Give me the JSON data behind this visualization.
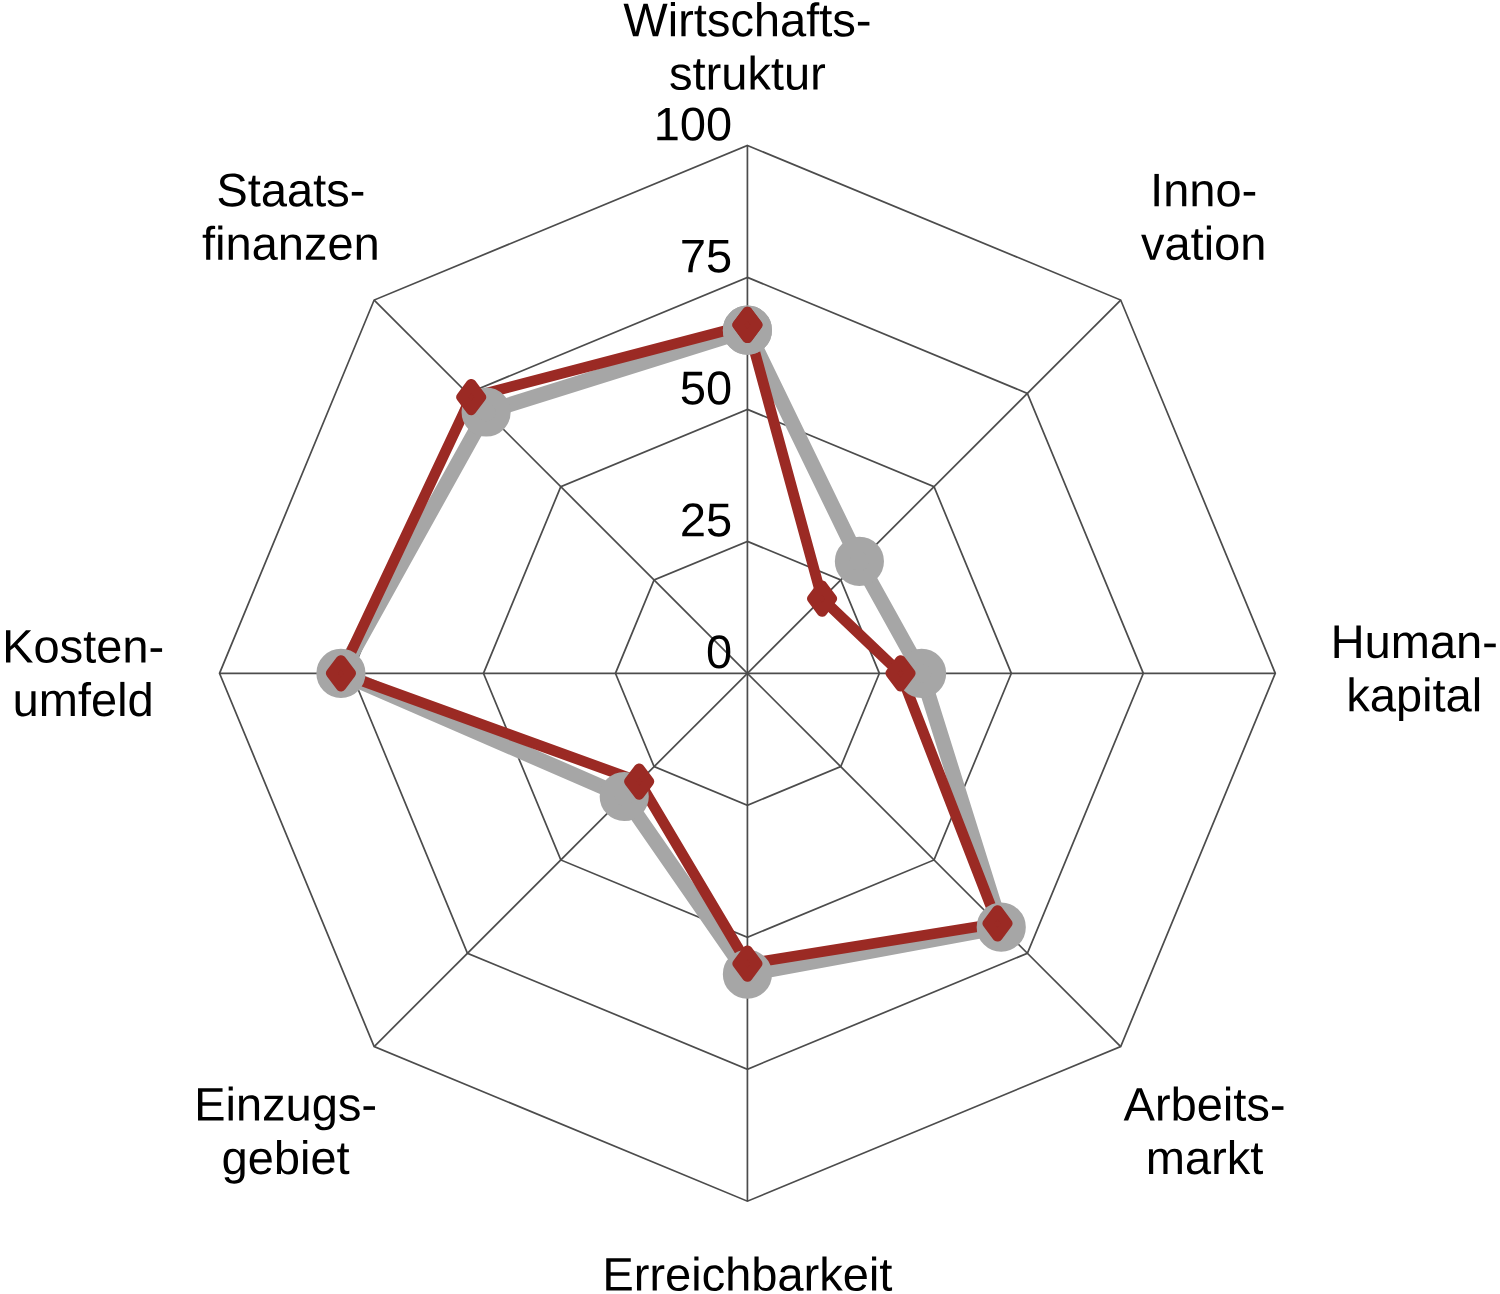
{
  "chart_data": {
    "type": "radar",
    "categories": [
      "Wirtschafts-struktur",
      "Inno-vation",
      "Human-kapital",
      "Arbeits-markt",
      "Erreichbarkeit",
      "Einzugs-gebiet",
      "Kosten-umfeld",
      "Staats-finanzen"
    ],
    "series": [
      {
        "color": "#a6a6a6",
        "marker": "circle",
        "values": [
          65,
          30,
          33,
          68,
          57,
          33,
          77,
          70
        ]
      },
      {
        "color": "#9b2a24",
        "marker": "diamond",
        "values": [
          66,
          20,
          29,
          67,
          55,
          29,
          77,
          74
        ]
      }
    ],
    "ylim": [
      0,
      100
    ],
    "yticks": [
      0,
      25,
      50,
      75,
      100
    ],
    "grid": true,
    "line_style": "solid"
  }
}
